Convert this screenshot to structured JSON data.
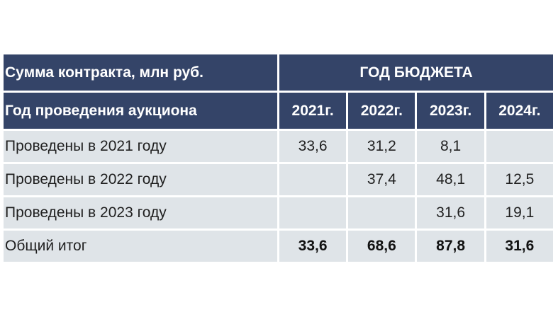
{
  "table": {
    "header_row1": {
      "label": "Сумма контракта, млн руб.",
      "group": "ГОД БЮДЖЕТА"
    },
    "header_row2": {
      "label": "Год проведения аукциона",
      "years": [
        "2021г.",
        "2022г.",
        "2023г.",
        "2024г."
      ]
    },
    "rows": [
      {
        "label": "Проведены в 2021 году",
        "values": [
          "33,6",
          "31,2",
          "8,1",
          ""
        ]
      },
      {
        "label": "Проведены в 2022 году",
        "values": [
          "",
          "37,4",
          "48,1",
          "12,5"
        ]
      },
      {
        "label": "Проведены в 2023 году",
        "values": [
          "",
          "",
          "31,6",
          "19,1"
        ]
      }
    ],
    "total": {
      "label": "Общий итог",
      "values": [
        "33,6",
        "68,6",
        "87,8",
        "31,6"
      ]
    }
  },
  "colors": {
    "header_bg": "#344468",
    "cell_bg": "#dfe4e8",
    "header_text": "#ffffff"
  }
}
